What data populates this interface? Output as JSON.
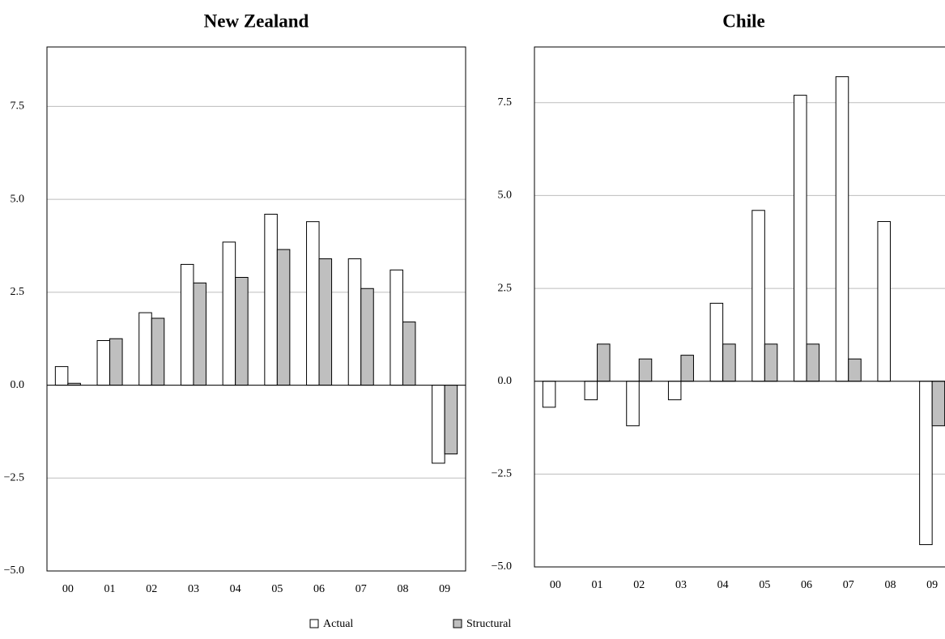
{
  "chart_data": [
    {
      "type": "bar",
      "title": "New Zealand",
      "categories": [
        "00",
        "01",
        "02",
        "03",
        "04",
        "05",
        "06",
        "07",
        "08",
        "09"
      ],
      "series": [
        {
          "name": "Actual",
          "color": "#ffffff",
          "values": [
            0.5,
            1.2,
            1.95,
            3.25,
            3.85,
            4.6,
            4.4,
            3.4,
            3.1,
            -2.1
          ]
        },
        {
          "name": "Structural",
          "color": "#bfbfbf",
          "values": [
            0.05,
            1.25,
            1.8,
            2.75,
            2.9,
            3.65,
            3.4,
            2.6,
            1.7,
            -1.85
          ]
        }
      ],
      "ylim": [
        -5,
        9.1
      ],
      "yticks": [
        {
          "value": -5,
          "label": "−5.0"
        },
        {
          "value": -2.5,
          "label": "−2.5"
        },
        {
          "value": 0,
          "label": "0.0"
        },
        {
          "value": 2.5,
          "label": "2.5"
        },
        {
          "value": 5,
          "label": "5.0"
        },
        {
          "value": 7.5,
          "label": "7.5"
        }
      ],
      "grid": true
    },
    {
      "type": "bar",
      "title": "Chile",
      "categories": [
        "00",
        "01",
        "02",
        "03",
        "04",
        "05",
        "06",
        "07",
        "08",
        "09"
      ],
      "series": [
        {
          "name": "Actual",
          "color": "#ffffff",
          "values": [
            -0.7,
            -0.5,
            -1.2,
            -0.5,
            2.1,
            4.6,
            7.7,
            8.2,
            4.3,
            -4.4
          ]
        },
        {
          "name": "Structural",
          "color": "#bfbfbf",
          "values": [
            null,
            1.0,
            0.6,
            0.7,
            1.0,
            1.0,
            1.0,
            0.6,
            null,
            -1.2
          ]
        }
      ],
      "ylim": [
        -5,
        9
      ],
      "yticks": [
        {
          "value": -5,
          "label": "−5.0"
        },
        {
          "value": -2.5,
          "label": "−2.5"
        },
        {
          "value": 0,
          "label": "0.0"
        },
        {
          "value": 2.5,
          "label": "2.5"
        },
        {
          "value": 5,
          "label": "5.0"
        },
        {
          "value": 7.5,
          "label": "7.5"
        }
      ],
      "grid": true
    }
  ]
}
